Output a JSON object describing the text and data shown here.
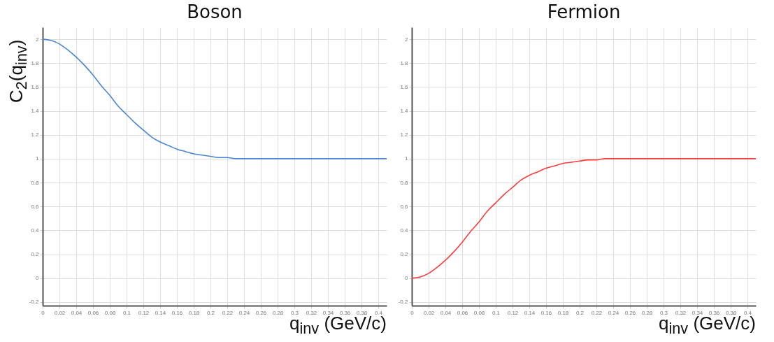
{
  "chart_data": [
    {
      "type": "line",
      "title": "Boson",
      "ylabel": "C$_{2}$(q$_{inv}$)",
      "xlabel": "q$_{inv}$ (GeV/c)",
      "x": [
        0,
        0.01,
        0.02,
        0.03,
        0.04,
        0.05,
        0.06,
        0.07,
        0.08,
        0.09,
        0.1,
        0.11,
        0.12,
        0.13,
        0.14,
        0.15,
        0.16,
        0.17,
        0.18,
        0.19,
        0.2,
        0.21,
        0.22,
        0.23,
        0.24,
        0.26,
        0.28,
        0.3,
        0.32,
        0.34,
        0.36,
        0.38,
        0.4,
        0.41
      ],
      "series": [
        {
          "color": "#4a86d4",
          "values": [
            2,
            1.99,
            1.96,
            1.91,
            1.85,
            1.78,
            1.7,
            1.61,
            1.53,
            1.44,
            1.37,
            1.3,
            1.24,
            1.18,
            1.14,
            1.11,
            1.08,
            1.06,
            1.04,
            1.03,
            1.02,
            1.01,
            1.01,
            1,
            1,
            1,
            1,
            1,
            1,
            1,
            1,
            1,
            1,
            1
          ]
        }
      ],
      "xlim": [
        0,
        0.41
      ],
      "ylim": [
        -0.23,
        2.1
      ],
      "xticks": [
        0,
        0.02,
        0.04,
        0.06,
        0.08,
        0.1,
        0.12,
        0.14,
        0.16,
        0.18,
        0.2,
        0.22,
        0.24,
        0.26,
        0.28,
        0.3,
        0.32,
        0.34,
        0.36,
        0.38,
        0.4
      ],
      "yticks": [
        -0.2,
        0,
        0.2,
        0.4,
        0.6,
        0.8,
        1,
        1.2,
        1.4,
        1.6,
        1.8,
        2
      ],
      "grid": true
    },
    {
      "type": "line",
      "title": "Fermion",
      "xlabel": "q$_{inv}$ (GeV/c)",
      "x": [
        0,
        0.01,
        0.02,
        0.03,
        0.04,
        0.05,
        0.06,
        0.07,
        0.08,
        0.09,
        0.1,
        0.11,
        0.12,
        0.13,
        0.14,
        0.15,
        0.16,
        0.17,
        0.18,
        0.19,
        0.2,
        0.21,
        0.22,
        0.23,
        0.24,
        0.26,
        0.28,
        0.3,
        0.32,
        0.34,
        0.36,
        0.38,
        0.4,
        0.41
      ],
      "series": [
        {
          "color": "#ff3b3b",
          "values": [
            0,
            0.01,
            0.04,
            0.09,
            0.15,
            0.22,
            0.3,
            0.39,
            0.47,
            0.56,
            0.63,
            0.7,
            0.76,
            0.82,
            0.86,
            0.89,
            0.92,
            0.94,
            0.96,
            0.97,
            0.98,
            0.99,
            0.99,
            1,
            1,
            1,
            1,
            1,
            1,
            1,
            1,
            1,
            1,
            1
          ]
        }
      ],
      "xlim": [
        0,
        0.41
      ],
      "ylim": [
        -0.23,
        2.1
      ],
      "xticks": [
        0,
        0.02,
        0.04,
        0.06,
        0.08,
        0.1,
        0.12,
        0.14,
        0.16,
        0.18,
        0.2,
        0.22,
        0.24,
        0.26,
        0.28,
        0.3,
        0.32,
        0.34,
        0.36,
        0.38,
        0.4
      ],
      "yticks": [
        -0.2,
        0,
        0.2,
        0.4,
        0.6,
        0.8,
        1,
        1.2,
        1.4,
        1.6,
        1.8,
        2
      ],
      "grid": true
    }
  ]
}
